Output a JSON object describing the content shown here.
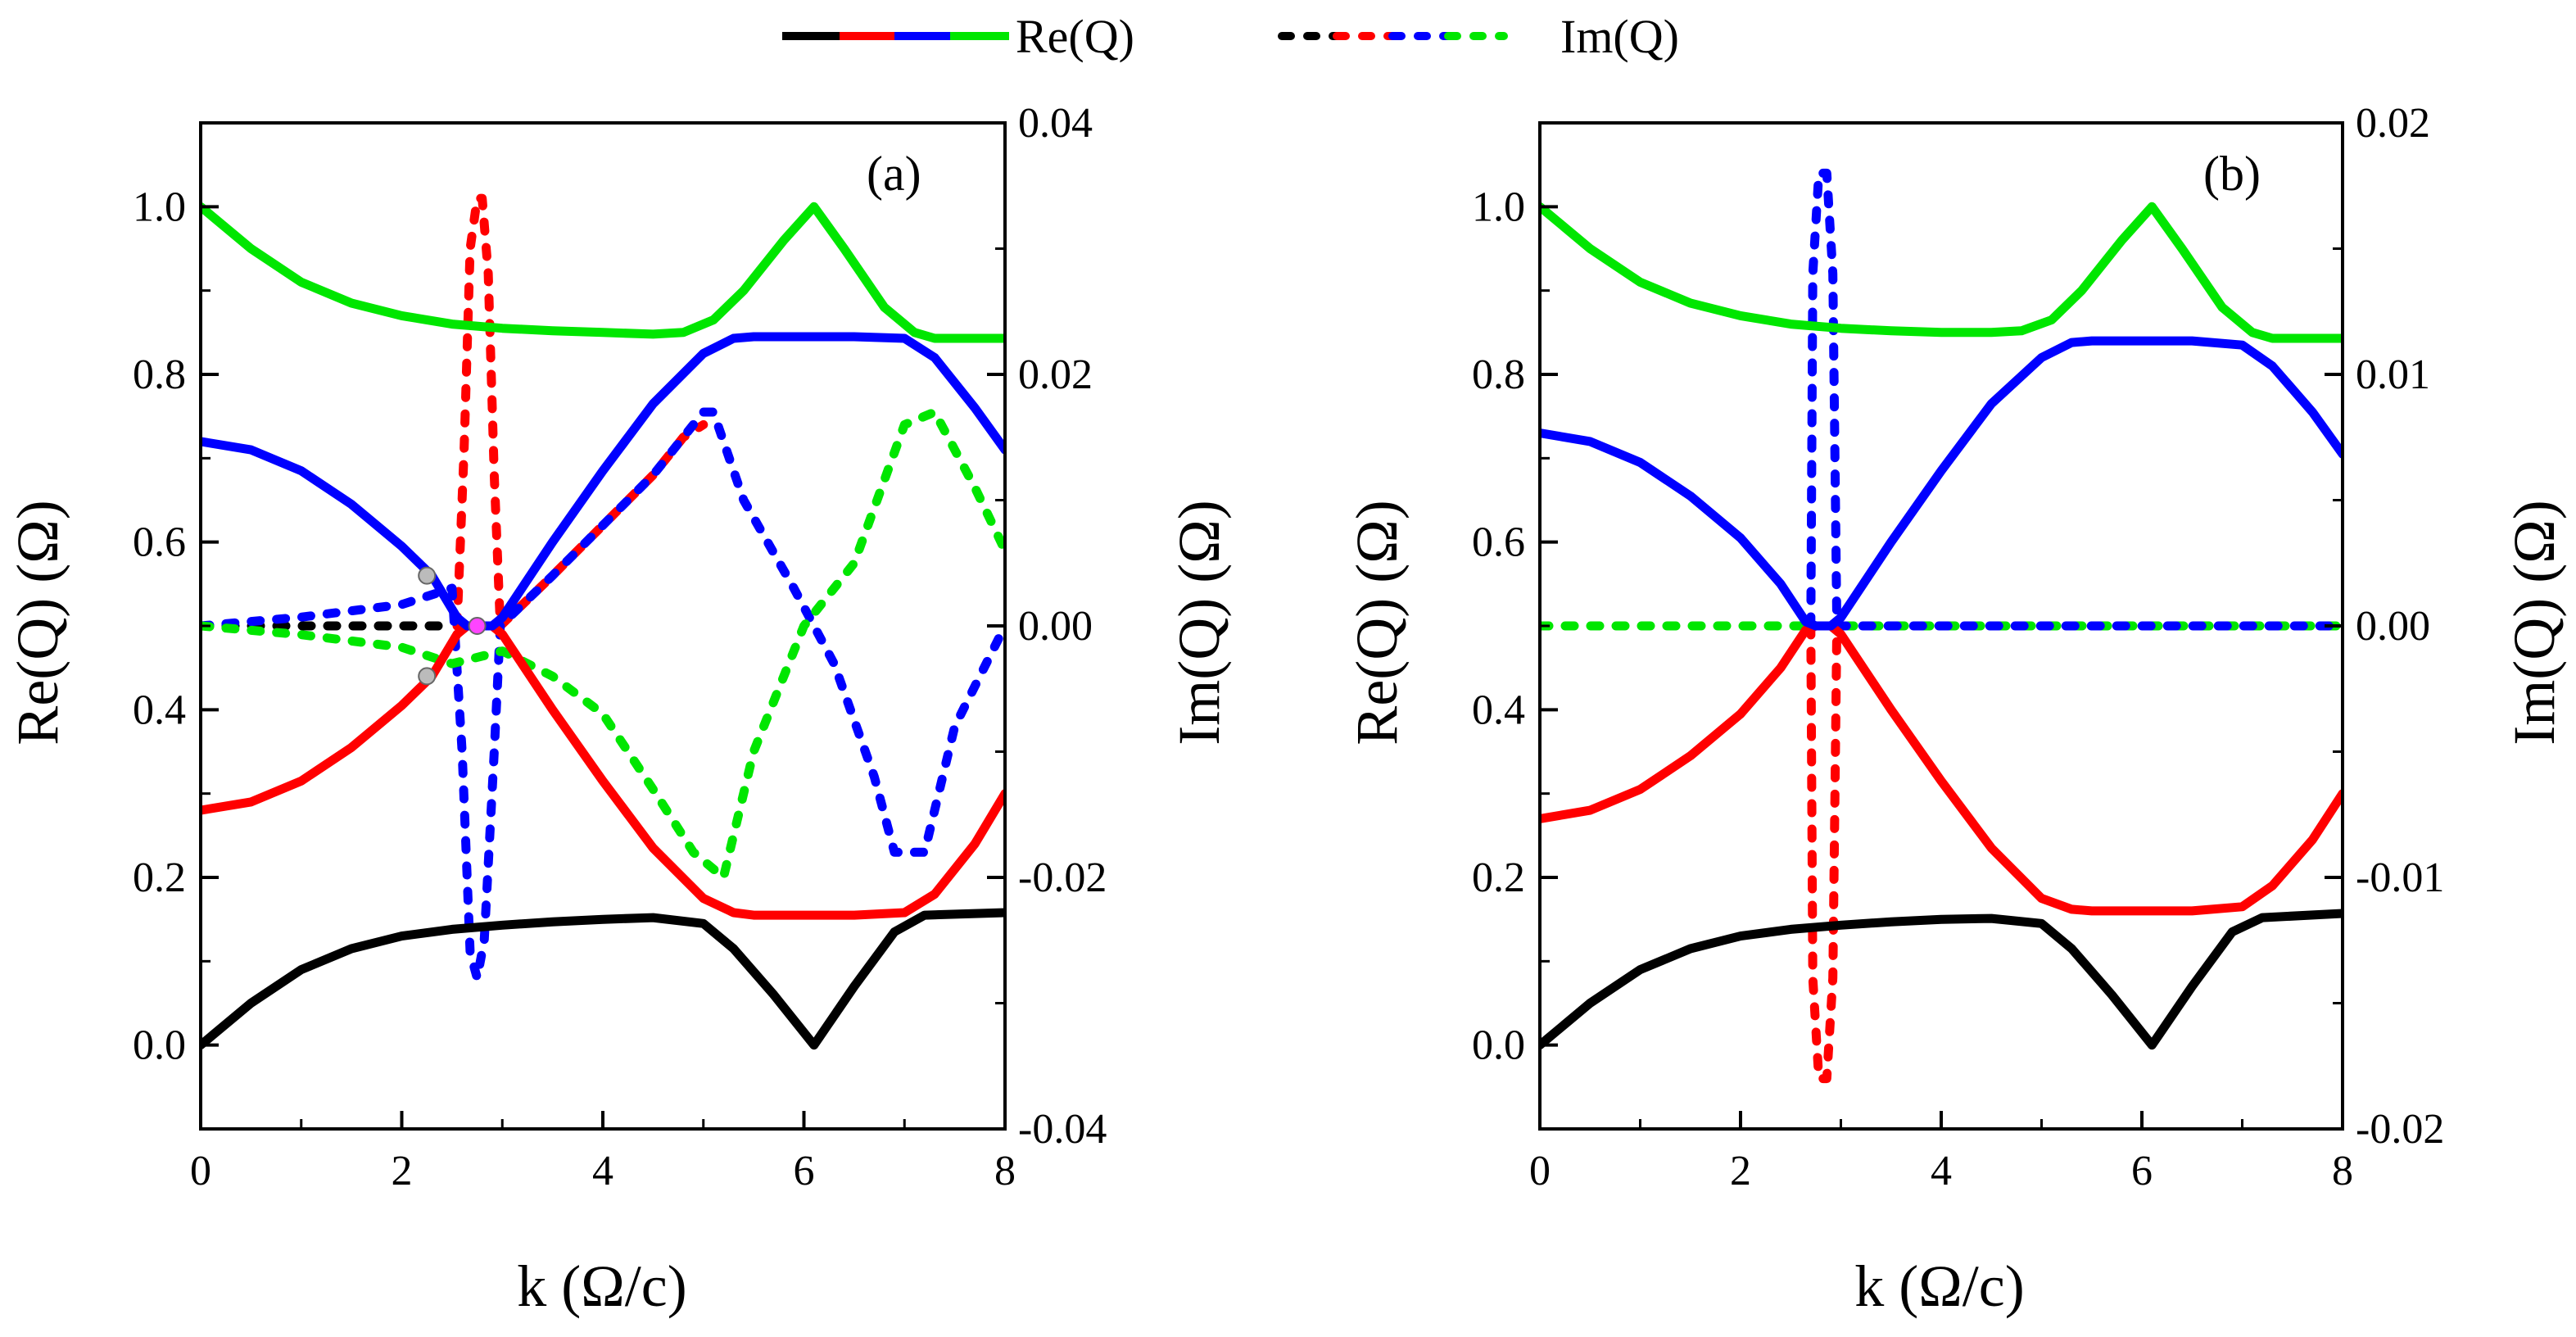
{
  "legend": {
    "solid_label": "Re(Q)",
    "dashed_label": "Im(Q)",
    "colors": [
      "#000000",
      "#ff0000",
      "#0000ff",
      "#00e600"
    ]
  },
  "chart_data": [
    {
      "type": "line",
      "panel": "(a)",
      "xlabel": "k (Ω/c)",
      "ylabel_left": "Re(Q) (Ω)",
      "ylabel_right": "Im(Q) (Ω)",
      "xlim": [
        0,
        8
      ],
      "ylim_left": [
        -0.1,
        1.1
      ],
      "ylim_right": [
        -0.04,
        0.04
      ],
      "x_ticks": [
        "0",
        "2",
        "4",
        "6",
        "8"
      ],
      "y_ticks_left": [
        "0.0",
        "0.2",
        "0.4",
        "0.6",
        "0.8",
        "1.0"
      ],
      "y_ticks_right": [
        "-0.04",
        "-0.02",
        "0.00",
        "0.02",
        "0.04"
      ],
      "series_re": [
        {
          "name": "black",
          "color": "#000000",
          "points": [
            [
              0,
              0
            ],
            [
              0.5,
              0.05
            ],
            [
              1,
              0.09
            ],
            [
              1.5,
              0.115
            ],
            [
              2,
              0.13
            ],
            [
              2.5,
              0.138
            ],
            [
              3,
              0.143
            ],
            [
              3.5,
              0.147
            ],
            [
              4,
              0.15
            ],
            [
              4.5,
              0.152
            ],
            [
              5,
              0.145
            ],
            [
              5.3,
              0.115
            ],
            [
              5.7,
              0.06
            ],
            [
              6.1,
              0.0
            ],
            [
              6.5,
              0.07
            ],
            [
              6.9,
              0.135
            ],
            [
              7.2,
              0.155
            ],
            [
              8,
              0.158
            ]
          ]
        },
        {
          "name": "red",
          "color": "#ff0000",
          "points": [
            [
              0,
              0.28
            ],
            [
              0.5,
              0.29
            ],
            [
              1,
              0.315
            ],
            [
              1.5,
              0.355
            ],
            [
              2,
              0.405
            ],
            [
              2.3,
              0.44
            ],
            [
              2.55,
              0.49
            ],
            [
              2.65,
              0.5
            ],
            [
              2.9,
              0.5
            ],
            [
              3,
              0.49
            ],
            [
              3.5,
              0.4
            ],
            [
              4,
              0.315
            ],
            [
              4.5,
              0.235
            ],
            [
              5,
              0.175
            ],
            [
              5.3,
              0.158
            ],
            [
              5.5,
              0.155
            ],
            [
              6,
              0.155
            ],
            [
              6.5,
              0.155
            ],
            [
              7,
              0.158
            ],
            [
              7.3,
              0.18
            ],
            [
              7.7,
              0.24
            ],
            [
              8,
              0.3
            ]
          ]
        },
        {
          "name": "blue",
          "color": "#0000ff",
          "points": [
            [
              0,
              0.72
            ],
            [
              0.5,
              0.71
            ],
            [
              1,
              0.685
            ],
            [
              1.5,
              0.645
            ],
            [
              2,
              0.595
            ],
            [
              2.3,
              0.56
            ],
            [
              2.55,
              0.51
            ],
            [
              2.65,
              0.5
            ],
            [
              2.9,
              0.5
            ],
            [
              3,
              0.51
            ],
            [
              3.5,
              0.6
            ],
            [
              4,
              0.685
            ],
            [
              4.5,
              0.765
            ],
            [
              5,
              0.825
            ],
            [
              5.3,
              0.843
            ],
            [
              5.5,
              0.845
            ],
            [
              6,
              0.845
            ],
            [
              6.5,
              0.845
            ],
            [
              7,
              0.843
            ],
            [
              7.3,
              0.82
            ],
            [
              7.7,
              0.76
            ],
            [
              8,
              0.71
            ]
          ]
        },
        {
          "name": "green",
          "color": "#00e600",
          "points": [
            [
              0,
              1.0
            ],
            [
              0.5,
              0.95
            ],
            [
              1,
              0.91
            ],
            [
              1.5,
              0.885
            ],
            [
              2,
              0.87
            ],
            [
              2.5,
              0.86
            ],
            [
              3,
              0.855
            ],
            [
              3.5,
              0.852
            ],
            [
              4,
              0.85
            ],
            [
              4.5,
              0.848
            ],
            [
              4.8,
              0.85
            ],
            [
              5.1,
              0.865
            ],
            [
              5.4,
              0.9
            ],
            [
              5.8,
              0.96
            ],
            [
              6.1,
              1.0
            ],
            [
              6.4,
              0.95
            ],
            [
              6.8,
              0.88
            ],
            [
              7.1,
              0.85
            ],
            [
              7.3,
              0.843
            ],
            [
              8,
              0.843
            ]
          ]
        }
      ],
      "series_im": [
        {
          "name": "black",
          "color": "#000000",
          "points": [
            [
              0,
              0.0
            ],
            [
              2.4,
              0.0
            ]
          ]
        },
        {
          "name": "red",
          "color": "#ff0000",
          "points": [
            [
              2.55,
              0.0
            ],
            [
              2.62,
              0.014
            ],
            [
              2.68,
              0.03
            ],
            [
              2.75,
              0.034
            ],
            [
              2.8,
              0.034
            ],
            [
              2.86,
              0.028
            ],
            [
              2.92,
              0.012
            ],
            [
              2.98,
              0.0
            ],
            [
              3.5,
              0.004
            ],
            [
              4,
              0.008
            ],
            [
              4.5,
              0.012
            ],
            [
              4.8,
              0.015
            ],
            [
              5.0,
              0.016
            ]
          ]
        },
        {
          "name": "blue",
          "color": "#0000ff",
          "points": [
            [
              0,
              0.0
            ],
            [
              1,
              0.0007
            ],
            [
              2,
              0.0017
            ],
            [
              2.5,
              0.003
            ],
            [
              2.6,
              -0.01
            ],
            [
              2.68,
              -0.026
            ],
            [
              2.75,
              -0.028
            ],
            [
              2.82,
              -0.025
            ],
            [
              2.92,
              -0.01
            ],
            [
              2.98,
              0.0
            ],
            [
              3.5,
              0.004
            ],
            [
              4,
              0.008
            ],
            [
              4.5,
              0.012
            ],
            [
              5,
              0.017
            ],
            [
              5.1,
              0.017
            ],
            [
              5.4,
              0.01
            ],
            [
              5.9,
              0.003
            ],
            [
              6.3,
              -0.003
            ],
            [
              6.7,
              -0.012
            ],
            [
              6.9,
              -0.018
            ],
            [
              7.2,
              -0.018
            ],
            [
              7.5,
              -0.008
            ],
            [
              8,
              0.0
            ]
          ]
        },
        {
          "name": "green",
          "color": "#00e600",
          "points": [
            [
              0,
              0.0
            ],
            [
              1,
              -0.0007
            ],
            [
              2,
              -0.0017
            ],
            [
              2.5,
              -0.003
            ],
            [
              3,
              -0.002
            ],
            [
              3.5,
              -0.004
            ],
            [
              4,
              -0.007
            ],
            [
              4.5,
              -0.013
            ],
            [
              4.9,
              -0.018
            ],
            [
              5.2,
              -0.02
            ],
            [
              5.5,
              -0.01
            ],
            [
              6,
              0.0
            ],
            [
              6.5,
              0.005
            ],
            [
              7,
              0.016
            ],
            [
              7.3,
              0.017
            ],
            [
              7.7,
              0.011
            ],
            [
              8,
              0.006
            ]
          ]
        }
      ],
      "markers": [
        {
          "x": 2.25,
          "y": 0.56,
          "color": "#bbbbbb"
        },
        {
          "x": 2.25,
          "y": 0.44,
          "color": "#bbbbbb"
        },
        {
          "x": 2.75,
          "y": 0.5,
          "color": "#ff44ff"
        }
      ]
    },
    {
      "type": "line",
      "panel": "(b)",
      "xlabel": "k (Ω/c)",
      "ylabel_left": "Re(Q) (Ω)",
      "ylabel_right": "Im(Q) (Ω)",
      "xlim": [
        0,
        8
      ],
      "ylim_left": [
        -0.1,
        1.1
      ],
      "ylim_right": [
        -0.02,
        0.02
      ],
      "x_ticks": [
        "0",
        "2",
        "4",
        "6",
        "8"
      ],
      "y_ticks_left": [
        "0.0",
        "0.2",
        "0.4",
        "0.6",
        "0.8",
        "1.0"
      ],
      "y_ticks_right": [
        "-0.02",
        "-0.01",
        "0.00",
        "0.01",
        "0.02"
      ],
      "series_re": [
        {
          "name": "black",
          "color": "#000000",
          "points": [
            [
              0,
              0
            ],
            [
              0.5,
              0.05
            ],
            [
              1,
              0.09
            ],
            [
              1.5,
              0.115
            ],
            [
              2,
              0.13
            ],
            [
              2.5,
              0.138
            ],
            [
              3,
              0.143
            ],
            [
              3.5,
              0.147
            ],
            [
              4,
              0.15
            ],
            [
              4.5,
              0.151
            ],
            [
              5,
              0.145
            ],
            [
              5.3,
              0.115
            ],
            [
              5.7,
              0.06
            ],
            [
              6.1,
              0.0
            ],
            [
              6.5,
              0.07
            ],
            [
              6.9,
              0.135
            ],
            [
              7.2,
              0.152
            ],
            [
              8,
              0.157
            ]
          ]
        },
        {
          "name": "red",
          "color": "#ff0000",
          "points": [
            [
              0,
              0.27
            ],
            [
              0.5,
              0.28
            ],
            [
              1,
              0.305
            ],
            [
              1.5,
              0.345
            ],
            [
              2,
              0.395
            ],
            [
              2.4,
              0.45
            ],
            [
              2.65,
              0.495
            ],
            [
              2.75,
              0.5
            ],
            [
              2.9,
              0.5
            ],
            [
              3,
              0.49
            ],
            [
              3.5,
              0.4
            ],
            [
              4,
              0.315
            ],
            [
              4.5,
              0.235
            ],
            [
              5,
              0.175
            ],
            [
              5.3,
              0.162
            ],
            [
              5.5,
              0.16
            ],
            [
              6,
              0.16
            ],
            [
              6.5,
              0.16
            ],
            [
              7,
              0.165
            ],
            [
              7.3,
              0.19
            ],
            [
              7.7,
              0.245
            ],
            [
              8,
              0.3
            ]
          ]
        },
        {
          "name": "blue",
          "color": "#0000ff",
          "points": [
            [
              0,
              0.73
            ],
            [
              0.5,
              0.72
            ],
            [
              1,
              0.695
            ],
            [
              1.5,
              0.655
            ],
            [
              2,
              0.605
            ],
            [
              2.4,
              0.55
            ],
            [
              2.65,
              0.505
            ],
            [
              2.75,
              0.5
            ],
            [
              2.9,
              0.5
            ],
            [
              3,
              0.51
            ],
            [
              3.5,
              0.6
            ],
            [
              4,
              0.685
            ],
            [
              4.5,
              0.765
            ],
            [
              5,
              0.82
            ],
            [
              5.3,
              0.838
            ],
            [
              5.5,
              0.84
            ],
            [
              6,
              0.84
            ],
            [
              6.5,
              0.84
            ],
            [
              7,
              0.835
            ],
            [
              7.3,
              0.81
            ],
            [
              7.7,
              0.755
            ],
            [
              8,
              0.705
            ]
          ]
        },
        {
          "name": "green",
          "color": "#00e600",
          "points": [
            [
              0,
              1.0
            ],
            [
              0.5,
              0.95
            ],
            [
              1,
              0.91
            ],
            [
              1.5,
              0.885
            ],
            [
              2,
              0.87
            ],
            [
              2.5,
              0.86
            ],
            [
              3,
              0.855
            ],
            [
              3.5,
              0.852
            ],
            [
              4,
              0.85
            ],
            [
              4.5,
              0.85
            ],
            [
              4.8,
              0.852
            ],
            [
              5.1,
              0.865
            ],
            [
              5.4,
              0.9
            ],
            [
              5.8,
              0.96
            ],
            [
              6.1,
              1.0
            ],
            [
              6.4,
              0.95
            ],
            [
              6.8,
              0.88
            ],
            [
              7.1,
              0.85
            ],
            [
              7.3,
              0.843
            ],
            [
              8,
              0.843
            ]
          ]
        }
      ],
      "series_im": [
        {
          "name": "green",
          "color": "#00e600",
          "points": [
            [
              0,
              0.0
            ],
            [
              8,
              0.0
            ]
          ]
        },
        {
          "name": "blue",
          "color": "#0000ff",
          "points": [
            [
              2.7,
              0.0
            ],
            [
              2.72,
              0.014
            ],
            [
              2.78,
              0.018
            ],
            [
              2.86,
              0.018
            ],
            [
              2.92,
              0.014
            ],
            [
              2.96,
              0.0
            ],
            [
              8,
              0.0
            ]
          ]
        },
        {
          "name": "red",
          "color": "#ff0000",
          "points": [
            [
              2.7,
              0.0
            ],
            [
              2.72,
              -0.014
            ],
            [
              2.78,
              -0.018
            ],
            [
              2.86,
              -0.018
            ],
            [
              2.92,
              -0.014
            ],
            [
              2.96,
              0.0
            ]
          ]
        }
      ],
      "markers": []
    }
  ]
}
